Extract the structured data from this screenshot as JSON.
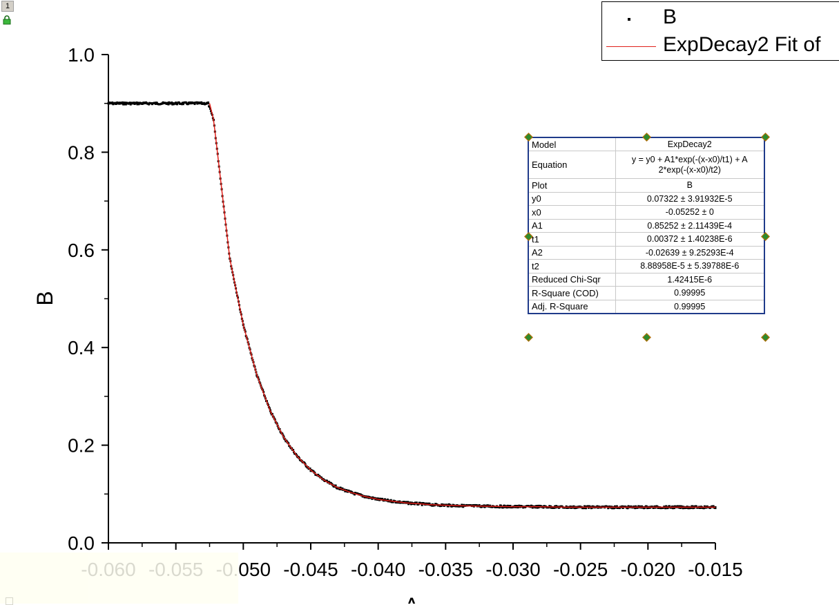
{
  "window": {
    "layer_number": "1"
  },
  "chart_data": {
    "type": "scatter",
    "xlabel": "A",
    "ylabel": "B",
    "xlim": [
      -0.06,
      -0.015
    ],
    "ylim": [
      0.0,
      1.0
    ],
    "x_ticks": [
      "-0.060",
      "-0.055",
      "-0.050",
      "-0.045",
      "-0.040",
      "-0.035",
      "-0.030",
      "-0.025",
      "-0.020",
      "-0.015"
    ],
    "y_ticks": [
      "0.0",
      "0.2",
      "0.4",
      "0.6",
      "0.8",
      "1.0"
    ],
    "grid": false,
    "legend_position": "top-right",
    "series": [
      {
        "name": "B",
        "kind": "scatter",
        "color": "#000000",
        "x": [
          -0.06,
          -0.058,
          -0.056,
          -0.054,
          -0.0526,
          -0.0522,
          -0.051,
          -0.05,
          -0.049,
          -0.048,
          -0.047,
          -0.046,
          -0.045,
          -0.044,
          -0.043,
          -0.042,
          -0.041,
          -0.04,
          -0.038,
          -0.036,
          -0.034,
          -0.032,
          -0.03,
          -0.028,
          -0.026,
          -0.024,
          -0.022,
          -0.02,
          -0.018,
          -0.016,
          -0.015
        ],
        "y": [
          0.9,
          0.9,
          0.9,
          0.9,
          0.9,
          0.866,
          0.582,
          0.446,
          0.344,
          0.27,
          0.216,
          0.177,
          0.149,
          0.128,
          0.113,
          0.103,
          0.095,
          0.089,
          0.082,
          0.078,
          0.076,
          0.075,
          0.074,
          0.074,
          0.073,
          0.073,
          0.073,
          0.073,
          0.073,
          0.073,
          0.073
        ]
      },
      {
        "name": "ExpDecay2 Fit of",
        "kind": "line",
        "color": "#e0201a",
        "x": [
          -0.0525,
          -0.0522,
          -0.051,
          -0.05,
          -0.049,
          -0.048,
          -0.047,
          -0.046,
          -0.045,
          -0.044,
          -0.043,
          -0.042,
          -0.041,
          -0.04,
          -0.038,
          -0.036,
          -0.034,
          -0.032,
          -0.03,
          -0.028,
          -0.026,
          -0.024,
          -0.022,
          -0.02,
          -0.018,
          -0.016,
          -0.015
        ],
        "y": [
          0.9,
          0.866,
          0.582,
          0.446,
          0.344,
          0.27,
          0.216,
          0.177,
          0.149,
          0.128,
          0.113,
          0.103,
          0.095,
          0.089,
          0.082,
          0.078,
          0.076,
          0.075,
          0.074,
          0.074,
          0.073,
          0.073,
          0.073,
          0.073,
          0.073,
          0.073,
          0.073
        ]
      }
    ]
  },
  "legend": {
    "items": [
      {
        "label": "B"
      },
      {
        "label": "ExpDecay2 Fit of"
      }
    ]
  },
  "fit_table": {
    "rows": [
      {
        "key": "Model",
        "value": "ExpDecay2"
      },
      {
        "key": "Equation",
        "value": "y = y0 + A1*exp(-(x-x0)/t1) + A",
        "value2": "2*exp(-(x-x0)/t2)"
      },
      {
        "key": "Plot",
        "value": "B"
      },
      {
        "key": "y0",
        "value": "0.07322 ± 3.91932E-5"
      },
      {
        "key": "x0",
        "value": "-0.05252 ± 0"
      },
      {
        "key": "A1",
        "value": "0.85252 ± 2.11439E-4"
      },
      {
        "key": "t1",
        "value": "0.00372 ± 1.40238E-6"
      },
      {
        "key": "A2",
        "value": "-0.02639 ± 9.25293E-4"
      },
      {
        "key": "t2",
        "value": "8.88958E-5 ± 5.39788E-6"
      },
      {
        "key": "Reduced Chi-Sqr",
        "value": "1.42415E-6"
      },
      {
        "key": "R-Square (COD)",
        "value": "0.99995"
      },
      {
        "key": "Adj. R-Square",
        "value": "0.99995"
      }
    ]
  }
}
